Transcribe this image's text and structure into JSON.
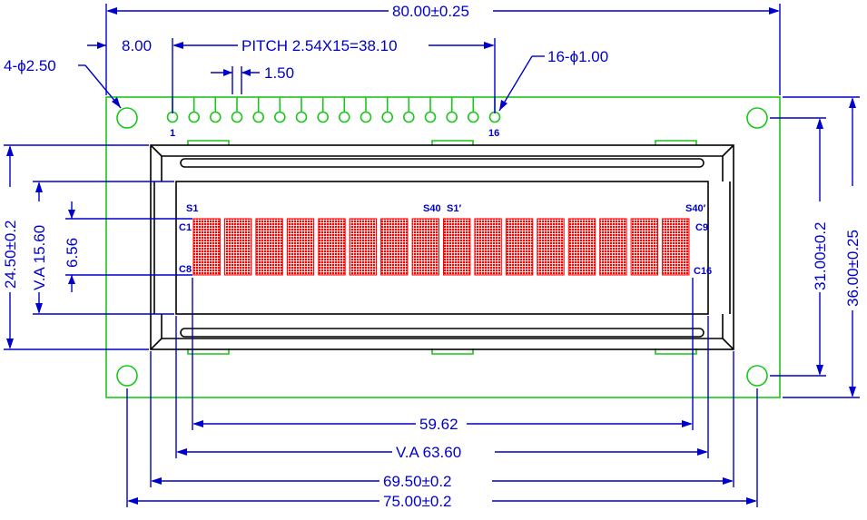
{
  "title": "",
  "colors": {
    "dimension": "#0000cc",
    "pcb_outline": "#19c619",
    "module_outline": "#000000",
    "character_cells": "#ff0000",
    "background": "#ffffff"
  },
  "dimensions": {
    "overall_width": "80.00±0.25",
    "hole_offset": "8.00",
    "pitch": "PITCH  2.54X15=38.10",
    "pad_spacing": "1.50",
    "mount_holes": "4-ϕ2.50",
    "pin_holes": "16-ϕ1.00",
    "bezel_height": "24.50±0.2",
    "va_height": "V.A  15.60",
    "char_height": "6.56",
    "hole_pitch_height": "31.00±0.2",
    "board_height": "36.00±0.25",
    "char_area_width": "59.62",
    "va_width": "V.A  63.60",
    "bezel_width": "69.50±0.2",
    "hole_pitch_width": "75.00±0.2"
  },
  "pins": {
    "first": "1",
    "last": "16",
    "count": 16
  },
  "segment_labels": {
    "s1": "S1",
    "s40": "S40",
    "s1_prime": "S1′",
    "s40_prime": "S40′"
  },
  "row_labels": {
    "c1": "C1",
    "c8": "C8",
    "c9": "C9",
    "c16": "C16"
  },
  "display": {
    "characters_per_row": 16,
    "rows": 1,
    "dots_columns": 5,
    "dots_rows": 8
  }
}
